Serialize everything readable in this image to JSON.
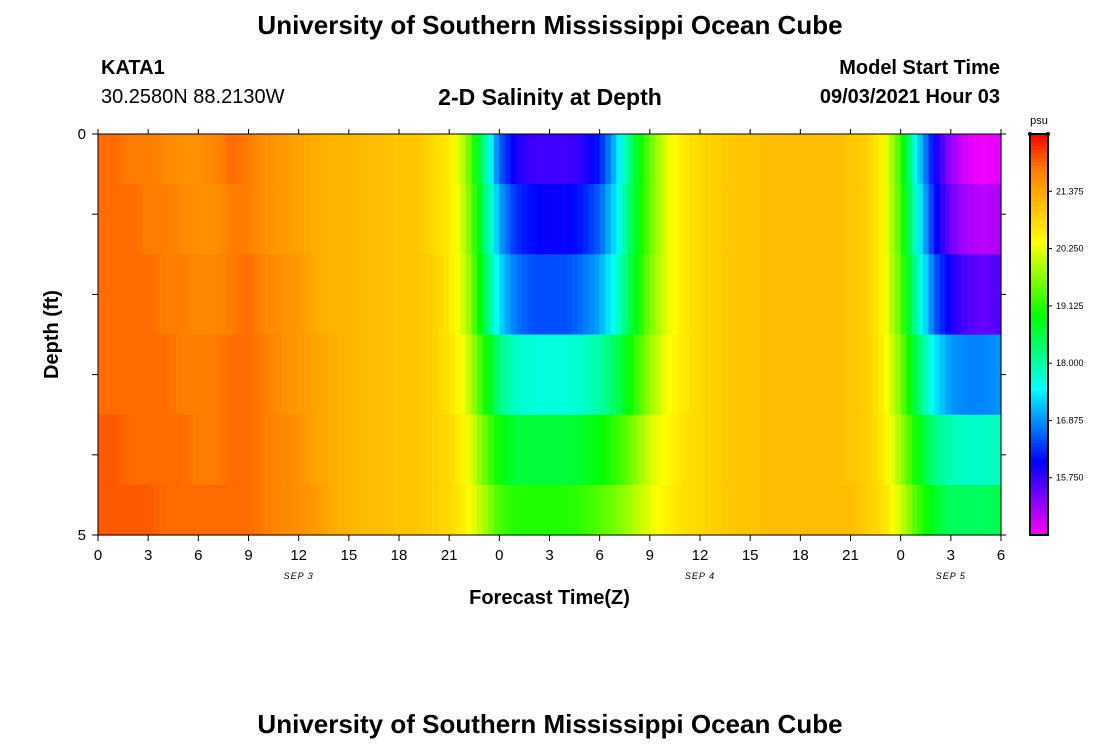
{
  "header": {
    "title": "University of Southern Mississippi Ocean Cube",
    "station": "KATA1",
    "coords": "30.2580N  88.2130W",
    "plot_title": "2-D Salinity at Depth",
    "model_label": "Model Start Time",
    "model_time": "09/03/2021 Hour 03"
  },
  "footer": {
    "title": "University of Southern Mississippi Ocean Cube"
  },
  "chart_data": {
    "type": "heatmap",
    "title": "2-D Salinity at Depth",
    "xlabel": "Forecast Time(Z)",
    "ylabel": "Depth (ft)",
    "x_ticks": [
      "0",
      "3",
      "6",
      "9",
      "12",
      "15",
      "18",
      "21",
      "0",
      "3",
      "6",
      "9",
      "12",
      "15",
      "18",
      "21",
      "0",
      "3",
      "6"
    ],
    "date_labels": [
      "SEP 3",
      "SEP 4",
      "SEP 5"
    ],
    "x_hours": [
      0,
      1,
      2,
      3,
      4,
      5,
      6,
      7,
      8,
      9,
      10,
      11,
      12,
      13,
      14,
      15,
      16,
      17,
      18,
      19,
      20,
      21,
      22,
      23,
      24,
      25,
      26,
      27,
      28,
      29,
      30,
      31,
      32,
      33,
      34,
      35,
      36,
      37,
      38,
      39,
      40,
      41,
      42,
      43,
      44,
      45,
      46,
      47,
      48,
      49,
      50,
      51,
      52,
      53,
      54
    ],
    "y_ticks": [
      "0",
      "5"
    ],
    "ylim": [
      0,
      5
    ],
    "depth_levels": [
      0.25,
      1.0,
      2.0,
      3.0,
      4.0,
      4.75
    ],
    "z": [
      [
        21.9,
        21.9,
        21.8,
        21.8,
        21.7,
        21.6,
        21.6,
        21.7,
        21.9,
        21.8,
        21.6,
        21.5,
        21.4,
        21.3,
        21.2,
        21.2,
        21.1,
        21.1,
        21.0,
        21.0,
        20.8,
        20.6,
        19.8,
        18.3,
        16.6,
        15.9,
        15.7,
        15.7,
        15.7,
        15.8,
        16.2,
        17.2,
        18.5,
        19.5,
        20.2,
        20.6,
        20.8,
        20.9,
        21.0,
        21.0,
        21.1,
        21.1,
        21.1,
        21.1,
        21.1,
        21.0,
        20.9,
        20.4,
        19.2,
        17.4,
        16.0,
        15.2,
        14.8,
        14.7,
        14.8
      ],
      [
        21.9,
        21.9,
        21.9,
        21.8,
        21.8,
        21.7,
        21.6,
        21.6,
        21.8,
        21.8,
        21.6,
        21.5,
        21.4,
        21.3,
        21.2,
        21.2,
        21.1,
        21.1,
        21.0,
        21.0,
        20.8,
        20.6,
        19.9,
        18.5,
        17.0,
        16.3,
        16.1,
        16.0,
        16.0,
        16.2,
        16.6,
        17.4,
        18.6,
        19.5,
        20.2,
        20.6,
        20.8,
        20.9,
        21.0,
        21.0,
        21.1,
        21.1,
        21.1,
        21.1,
        21.1,
        21.0,
        20.9,
        20.4,
        19.3,
        17.6,
        16.2,
        15.4,
        15.1,
        15.0,
        15.1
      ],
      [
        21.9,
        21.9,
        21.9,
        21.9,
        21.8,
        21.8,
        21.7,
        21.7,
        21.8,
        21.9,
        21.7,
        21.6,
        21.5,
        21.3,
        21.2,
        21.2,
        21.1,
        21.1,
        21.0,
        21.0,
        20.9,
        20.6,
        20.0,
        18.7,
        17.3,
        16.7,
        16.5,
        16.5,
        16.5,
        16.7,
        17.0,
        17.7,
        18.7,
        19.6,
        20.2,
        20.6,
        20.8,
        20.9,
        21.0,
        21.0,
        21.1,
        21.1,
        21.1,
        21.1,
        21.1,
        21.0,
        20.9,
        20.4,
        19.4,
        17.9,
        16.6,
        15.9,
        15.6,
        15.5,
        15.6
      ],
      [
        21.9,
        21.9,
        21.9,
        21.9,
        21.9,
        21.8,
        21.8,
        21.8,
        21.9,
        21.9,
        21.8,
        21.6,
        21.5,
        21.4,
        21.3,
        21.2,
        21.1,
        21.1,
        21.0,
        21.0,
        20.9,
        20.7,
        20.2,
        19.2,
        18.2,
        17.8,
        17.7,
        17.7,
        17.7,
        17.8,
        18.0,
        18.4,
        19.1,
        19.8,
        20.3,
        20.6,
        20.8,
        20.9,
        21.0,
        21.0,
        21.1,
        21.1,
        21.1,
        21.1,
        21.1,
        21.0,
        20.9,
        20.5,
        19.6,
        18.4,
        17.4,
        16.9,
        16.8,
        16.8,
        16.9
      ],
      [
        22.0,
        22.0,
        21.9,
        21.9,
        21.9,
        21.9,
        21.8,
        21.8,
        21.9,
        21.9,
        21.8,
        21.7,
        21.6,
        21.4,
        21.3,
        21.2,
        21.1,
        21.1,
        21.0,
        21.0,
        20.9,
        20.8,
        20.4,
        19.6,
        18.9,
        18.6,
        18.6,
        18.6,
        18.6,
        18.7,
        18.9,
        19.2,
        19.6,
        20.1,
        20.4,
        20.7,
        20.8,
        20.9,
        21.0,
        21.0,
        21.1,
        21.1,
        21.1,
        21.1,
        21.1,
        21.0,
        20.9,
        20.6,
        19.8,
        18.9,
        18.2,
        17.9,
        17.8,
        17.8,
        17.9
      ],
      [
        22.0,
        22.0,
        22.0,
        22.0,
        21.9,
        21.9,
        21.9,
        21.9,
        21.9,
        21.9,
        21.8,
        21.7,
        21.6,
        21.5,
        21.3,
        21.2,
        21.1,
        21.1,
        21.0,
        21.0,
        20.9,
        20.8,
        20.5,
        19.9,
        19.3,
        19.1,
        19.1,
        19.1,
        19.1,
        19.2,
        19.4,
        19.6,
        19.9,
        20.2,
        20.5,
        20.7,
        20.8,
        20.9,
        21.0,
        21.0,
        21.1,
        21.1,
        21.1,
        21.1,
        21.1,
        21.1,
        20.9,
        20.7,
        20.1,
        19.3,
        18.7,
        18.4,
        18.4,
        18.4,
        18.5
      ]
    ],
    "colorbar": {
      "unit": "psu",
      "min": 14.625,
      "max": 22.5,
      "ticks": [
        "21.375",
        "20.250",
        "19.125",
        "18.000",
        "16.875",
        "15.750"
      ],
      "colors": [
        "#ff00ff",
        "#8000ff",
        "#0000ff",
        "#0080ff",
        "#00ffff",
        "#00ff80",
        "#00ff00",
        "#80ff00",
        "#ffff00",
        "#ffc000",
        "#ff8000",
        "#ff0000"
      ]
    }
  }
}
